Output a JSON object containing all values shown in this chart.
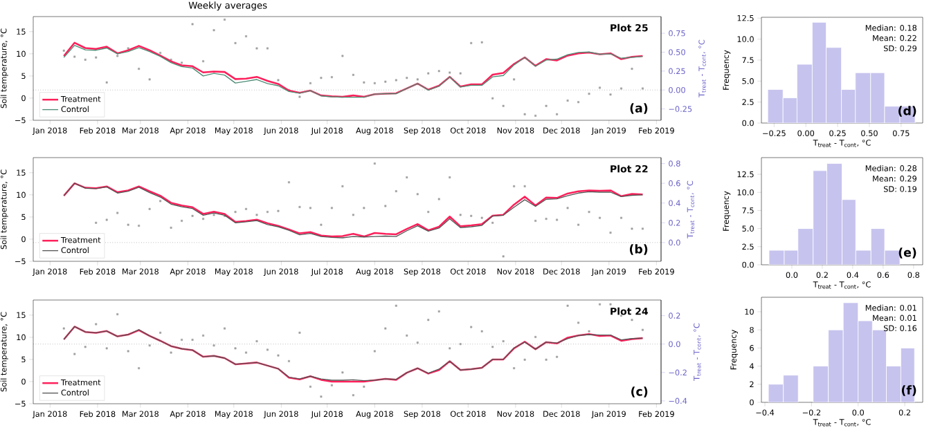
{
  "chart_data": [
    {
      "type": "line",
      "title": "Weekly averages",
      "annotations": [
        "Plot 25",
        "(a)"
      ],
      "ylabel": "Soil temperature, °C",
      "y2label": "T$_{treat}$ - T$_{cont}$, °C",
      "legend": "bottom left",
      "x": [
        "2018-01-10",
        "2018-01-17",
        "2018-01-24",
        "2018-01-31",
        "2018-02-07",
        "2018-02-14",
        "2018-02-21",
        "2018-02-28",
        "2018-03-07",
        "2018-03-14",
        "2018-03-21",
        "2018-03-28",
        "2018-04-04",
        "2018-04-11",
        "2018-04-18",
        "2018-04-25",
        "2018-05-02",
        "2018-05-09",
        "2018-05-16",
        "2018-05-23",
        "2018-05-30",
        "2018-06-06",
        "2018-06-13",
        "2018-06-20",
        "2018-06-27",
        "2018-07-04",
        "2018-07-11",
        "2018-07-18",
        "2018-07-25",
        "2018-08-01",
        "2018-08-08",
        "2018-08-15",
        "2018-08-22",
        "2018-08-29",
        "2018-09-05",
        "2018-09-12",
        "2018-09-19",
        "2018-09-26",
        "2018-10-03",
        "2018-10-10",
        "2018-10-17",
        "2018-10-24",
        "2018-10-31",
        "2018-11-07",
        "2018-11-14",
        "2018-11-21",
        "2018-11-28",
        "2018-12-05",
        "2018-12-12",
        "2018-12-19",
        "2018-12-26",
        "2019-01-02",
        "2019-01-09",
        "2019-01-16",
        "2019-01-23"
      ],
      "series": [
        {
          "type": "scatter",
          "axis": "y2",
          "marker": "square",
          "color": "#a0a0a0",
          "values": [
            0.52,
            0.44,
            0.4,
            0.43,
            0.1,
            0.45,
            0.55,
            0.28,
            0.14,
            0.49,
            0.4,
            0.36,
            0.87,
            0.38,
            0.79,
            0.93,
            0.62,
            0.71,
            0.55,
            0.55,
            0.13,
            0.0,
            -0.09,
            0.09,
            0.16,
            0.17,
            0.45,
            0.2,
            0.1,
            0.09,
            0.11,
            0.13,
            0.16,
            0.14,
            0.22,
            0.25,
            0.23,
            0.22,
            0.62,
            0.63,
            -0.11,
            -0.21,
            0.14,
            -0.32,
            -0.34,
            -0.21,
            -0.32,
            -0.14,
            -0.16,
            -0.05,
            0.03,
            -0.06,
            0.02,
            0.28,
            0.02
          ]
        },
        {
          "name": "Treatment",
          "color": "#ff1f5a",
          "values": [
            9.5,
            12.5,
            11.3,
            11.1,
            11.6,
            10.1,
            10.8,
            11.8,
            10.8,
            9.6,
            8.3,
            7.4,
            7.2,
            5.8,
            6.0,
            5.9,
            4.3,
            4.4,
            4.8,
            3.9,
            3.2,
            1.7,
            1.2,
            1.7,
            0.6,
            0.4,
            0.3,
            0.6,
            0.3,
            0.9,
            1.0,
            1.1,
            2.2,
            3.3,
            1.9,
            2.8,
            4.8,
            2.6,
            3.1,
            3.1,
            5.3,
            5.7,
            7.7,
            9.2,
            7.3,
            8.8,
            8.5,
            9.6,
            10.1,
            10.3,
            9.9,
            10.1,
            8.8,
            9.3,
            9.5
          ]
        },
        {
          "name": "Control",
          "color": "#4d8c74",
          "values": [
            9.2,
            11.9,
            10.9,
            10.8,
            11.3,
            10.0,
            10.5,
            11.4,
            10.5,
            9.4,
            8.0,
            7.1,
            6.8,
            5.0,
            5.6,
            5.2,
            3.4,
            3.8,
            4.2,
            3.3,
            2.8,
            1.5,
            1.1,
            1.7,
            0.5,
            0.3,
            0.2,
            0.2,
            0.2,
            0.9,
            1.0,
            1.0,
            2.2,
            3.3,
            1.8,
            2.7,
            4.8,
            2.5,
            2.9,
            2.9,
            4.8,
            5.1,
            7.5,
            9.2,
            7.2,
            8.6,
            8.8,
            9.8,
            10.3,
            10.4,
            9.9,
            10.0,
            9.0,
            9.2,
            9.4
          ]
        }
      ],
      "xlim": [
        "2017-12-21",
        "2019-02-04"
      ],
      "xticks": [
        {
          "value": "2018-01-01",
          "label": "Jan 2018"
        },
        {
          "value": "2018-02-01",
          "label": "Feb 2018"
        },
        {
          "value": "2018-03-01",
          "label": "Mar 2018"
        },
        {
          "value": "2018-04-01",
          "label": "Apr 2018"
        },
        {
          "value": "2018-05-01",
          "label": "May 2018"
        },
        {
          "value": "2018-06-01",
          "label": "Jun 2018"
        },
        {
          "value": "2018-07-01",
          "label": "Jul 2018"
        },
        {
          "value": "2018-08-01",
          "label": "Aug 2018"
        },
        {
          "value": "2018-09-01",
          "label": "Sep 2018"
        },
        {
          "value": "2018-10-01",
          "label": "Oct 2018"
        },
        {
          "value": "2018-11-01",
          "label": "Nov 2018"
        },
        {
          "value": "2018-12-01",
          "label": "Dec 2018"
        },
        {
          "value": "2019-01-01",
          "label": "Jan 2019"
        },
        {
          "value": "2019-02-01",
          "label": "Feb 2019"
        }
      ],
      "ylim": [
        -5,
        18.4
      ],
      "yticks": [
        {
          "value": -5,
          "label": "−5"
        },
        0,
        5,
        10,
        15
      ],
      "y2lim": [
        -0.4,
        0.97
      ],
      "y2ticks": [
        {
          "value": -0.25,
          "label": "−0.25"
        },
        {
          "value": 0,
          "label": "0.00"
        },
        {
          "value": 0.25,
          "label": "0.25"
        },
        {
          "value": 0.5,
          "label": "0.50"
        },
        {
          "value": 0.75,
          "label": "0.75"
        }
      ],
      "ref_lines": [
        {
          "axis": "y2",
          "value": 0,
          "line_style": "dotted",
          "color": "#999999"
        }
      ]
    },
    {
      "type": "line",
      "annotations": [
        "Plot 22",
        "(b)"
      ],
      "ylabel": "Soil temperature, °C",
      "y2label": "T$_{treat}$ - T$_{cont}$, °C",
      "legend": "bottom left",
      "x": [
        "2018-01-10",
        "2018-01-17",
        "2018-01-24",
        "2018-01-31",
        "2018-02-07",
        "2018-02-14",
        "2018-02-21",
        "2018-02-28",
        "2018-03-07",
        "2018-03-14",
        "2018-03-21",
        "2018-03-28",
        "2018-04-04",
        "2018-04-11",
        "2018-04-18",
        "2018-04-25",
        "2018-05-02",
        "2018-05-09",
        "2018-05-16",
        "2018-05-23",
        "2018-05-30",
        "2018-06-06",
        "2018-06-13",
        "2018-06-20",
        "2018-06-27",
        "2018-07-04",
        "2018-07-11",
        "2018-07-18",
        "2018-07-25",
        "2018-08-01",
        "2018-08-08",
        "2018-08-15",
        "2018-08-22",
        "2018-08-29",
        "2018-09-05",
        "2018-09-12",
        "2018-09-19",
        "2018-09-26",
        "2018-10-03",
        "2018-10-10",
        "2018-10-17",
        "2018-10-24",
        "2018-10-31",
        "2018-11-07",
        "2018-11-14",
        "2018-11-21",
        "2018-11-28",
        "2018-12-05",
        "2018-12-12",
        "2018-12-19",
        "2018-12-26",
        "2019-01-02",
        "2019-01-09",
        "2019-01-16",
        "2019-01-23"
      ],
      "series": [
        {
          "type": "scatter",
          "axis": "y2",
          "marker": "square",
          "color": "#a0a0a0",
          "values": [
            null,
            null,
            null,
            0.2,
            0.23,
            0.3,
            0.18,
            0.17,
            0.34,
            0.42,
            0.15,
            0.22,
            0.27,
            0.24,
            0.28,
            0.27,
            0.31,
            0.34,
            0.28,
            0.31,
            0.32,
            0.61,
            0.36,
            0.35,
            0.18,
            0.35,
            0.57,
            0.28,
            0.35,
            0.8,
            0.37,
            0.52,
            0.66,
            0.49,
            0.31,
            0.44,
            0.66,
            0.28,
            0.27,
            0.25,
            0.2,
            -0.14,
            0.57,
            0.57,
            0.22,
            0.24,
            0.23,
            0.35,
            0.18,
            0.31,
            0.25,
            0.1,
            0.25,
            0.14,
            0.14
          ]
        },
        {
          "name": "Treatment",
          "color": "#ff1f5a",
          "values": [
            9.8,
            12.6,
            11.6,
            11.5,
            11.9,
            10.6,
            11.0,
            11.9,
            10.8,
            9.8,
            8.2,
            7.6,
            7.2,
            5.7,
            6.2,
            5.7,
            3.9,
            4.1,
            4.4,
            3.6,
            3.0,
            2.2,
            1.3,
            1.6,
            0.8,
            0.6,
            0.7,
            1.2,
            0.6,
            1.4,
            1.2,
            1.1,
            2.3,
            3.4,
            2.0,
            2.8,
            5.1,
            2.9,
            3.1,
            3.4,
            5.3,
            5.5,
            7.8,
            9.6,
            7.6,
            9.4,
            9.3,
            10.3,
            10.8,
            11.0,
            10.9,
            11.0,
            9.7,
            10.2,
            10.1
          ]
        },
        {
          "name": "Control",
          "color": "#555555",
          "values": [
            9.8,
            12.6,
            11.5,
            11.4,
            11.8,
            10.4,
            10.8,
            11.7,
            10.5,
            9.5,
            7.9,
            7.3,
            6.9,
            5.4,
            5.9,
            5.4,
            3.7,
            3.9,
            4.2,
            3.3,
            2.8,
            2.0,
            1.0,
            1.3,
            0.6,
            0.4,
            0.3,
            0.6,
            0.5,
            0.6,
            0.7,
            0.6,
            1.9,
            3.0,
            1.8,
            2.5,
            4.6,
            2.6,
            2.8,
            3.1,
            5.2,
            5.4,
            7.2,
            8.9,
            7.4,
            9.0,
            9.1,
            9.8,
            10.4,
            10.7,
            10.6,
            10.6,
            9.6,
            9.9,
            10.0
          ]
        }
      ],
      "xlim": [
        "2017-12-21",
        "2019-02-04"
      ],
      "xticks": [
        {
          "value": "2018-01-01",
          "label": "Jan 2018"
        },
        {
          "value": "2018-02-01",
          "label": "Feb 2018"
        },
        {
          "value": "2018-03-01",
          "label": "Mar 2018"
        },
        {
          "value": "2018-04-01",
          "label": "Apr 2018"
        },
        {
          "value": "2018-05-01",
          "label": "May 2018"
        },
        {
          "value": "2018-06-01",
          "label": "Jun 2018"
        },
        {
          "value": "2018-07-01",
          "label": "Jul 2018"
        },
        {
          "value": "2018-08-01",
          "label": "Aug 2018"
        },
        {
          "value": "2018-09-01",
          "label": "Sep 2018"
        },
        {
          "value": "2018-10-01",
          "label": "Oct 2018"
        },
        {
          "value": "2018-11-01",
          "label": "Nov 2018"
        },
        {
          "value": "2018-12-01",
          "label": "Dec 2018"
        },
        {
          "value": "2019-01-01",
          "label": "Jan 2019"
        },
        {
          "value": "2019-02-01",
          "label": "Feb 2019"
        }
      ],
      "ylim": [
        -5,
        18.4
      ],
      "yticks": [
        {
          "value": -5,
          "label": "−5"
        },
        0,
        5,
        10,
        15
      ],
      "y2lim": [
        -0.19,
        0.86
      ],
      "y2ticks": [
        {
          "value": 0,
          "label": "0.0"
        },
        0.2,
        0.4,
        0.6,
        0.8
      ],
      "ref_lines": [
        {
          "axis": "y2",
          "value": 0,
          "line_style": "dotted",
          "color": "#999999"
        }
      ]
    },
    {
      "type": "line",
      "annotations": [
        "Plot 24",
        "(c)"
      ],
      "ylabel": "Soil temperature, °C",
      "y2label": "T$_{treat}$ - T$_{cont}$, °C",
      "legend": "bottom left",
      "x": [
        "2018-01-10",
        "2018-01-17",
        "2018-01-24",
        "2018-01-31",
        "2018-02-07",
        "2018-02-14",
        "2018-02-21",
        "2018-02-28",
        "2018-03-07",
        "2018-03-14",
        "2018-03-21",
        "2018-03-28",
        "2018-04-04",
        "2018-04-11",
        "2018-04-18",
        "2018-04-25",
        "2018-05-02",
        "2018-05-09",
        "2018-05-16",
        "2018-05-23",
        "2018-05-30",
        "2018-06-06",
        "2018-06-13",
        "2018-06-20",
        "2018-06-27",
        "2018-07-04",
        "2018-07-11",
        "2018-07-18",
        "2018-07-25",
        "2018-08-01",
        "2018-08-08",
        "2018-08-15",
        "2018-08-22",
        "2018-08-29",
        "2018-09-05",
        "2018-09-12",
        "2018-09-19",
        "2018-09-26",
        "2018-10-03",
        "2018-10-10",
        "2018-10-17",
        "2018-10-24",
        "2018-10-31",
        "2018-11-07",
        "2018-11-14",
        "2018-11-21",
        "2018-11-28",
        "2018-12-05",
        "2018-12-12",
        "2018-12-19",
        "2018-12-26",
        "2019-01-02",
        "2019-01-09",
        "2019-01-16",
        "2019-01-23"
      ],
      "series": [
        {
          "type": "scatter",
          "axis": "y2",
          "marker": "square",
          "color": "#a0a0a0",
          "values": [
            0.11,
            -0.07,
            -0.02,
            0.14,
            -0.03,
            0.21,
            -0.05,
            -0.17,
            -0.01,
            0.08,
            -0.06,
            0.03,
            0.03,
            0.06,
            -0.01,
            0.11,
            -0.03,
            -0.06,
            0.02,
            -0.04,
            -0.08,
            -0.12,
            0.08,
            -0.3,
            -0.37,
            -0.29,
            -0.2,
            -0.36,
            -0.3,
            -0.05,
            0.11,
            0.27,
            0.06,
            0.01,
            0.17,
            0.23,
            -0.03,
            0.0,
            0.12,
            0.09,
            -0.02,
            0.02,
            -0.17,
            -0.11,
            0.05,
            -0.11,
            -0.09,
            0.27,
            0.15,
            0.09,
            0.28,
            0.28,
            0.2,
            0.17,
            0.1
          ]
        },
        {
          "name": "Treatment",
          "color": "#ff1f5a",
          "values": [
            9.5,
            12.4,
            11.2,
            11.0,
            11.4,
            10.2,
            10.6,
            11.6,
            10.3,
            9.2,
            8.0,
            7.4,
            7.1,
            5.6,
            5.8,
            5.3,
            3.9,
            4.1,
            4.3,
            3.6,
            2.9,
            0.9,
            0.5,
            1.2,
            0.4,
            0.0,
            0.0,
            0.0,
            0.0,
            0.3,
            0.6,
            0.4,
            2.0,
            3.0,
            1.8,
            2.6,
            4.6,
            2.6,
            2.8,
            3.1,
            5.0,
            5.0,
            7.5,
            9.0,
            7.3,
            8.9,
            8.6,
            9.9,
            10.4,
            10.7,
            10.3,
            10.4,
            9.2,
            9.6,
            9.8
          ]
        },
        {
          "name": "Control",
          "color": "#555555",
          "values": [
            9.5,
            12.4,
            11.2,
            11.0,
            11.4,
            10.2,
            10.6,
            11.7,
            10.3,
            9.2,
            8.0,
            7.4,
            7.1,
            5.6,
            5.8,
            5.3,
            3.9,
            4.1,
            4.3,
            3.6,
            2.9,
            1.0,
            0.6,
            1.2,
            0.6,
            0.3,
            0.3,
            0.4,
            0.2,
            0.3,
            0.6,
            0.5,
            2.0,
            3.0,
            1.9,
            2.8,
            4.6,
            2.6,
            2.8,
            3.1,
            5.0,
            5.0,
            7.6,
            8.9,
            7.3,
            8.9,
            8.7,
            9.7,
            10.4,
            10.6,
            10.5,
            10.5,
            9.4,
            9.7,
            9.8
          ]
        }
      ],
      "xlim": [
        "2017-12-21",
        "2019-02-04"
      ],
      "xticks": [
        {
          "value": "2018-01-01",
          "label": "Jan 2018"
        },
        {
          "value": "2018-02-01",
          "label": "Feb 2018"
        },
        {
          "value": "2018-03-01",
          "label": "Mar 2018"
        },
        {
          "value": "2018-04-01",
          "label": "Apr 2018"
        },
        {
          "value": "2018-05-01",
          "label": "May 2018"
        },
        {
          "value": "2018-06-01",
          "label": "Jun 2018"
        },
        {
          "value": "2018-07-01",
          "label": "Jul 2018"
        },
        {
          "value": "2018-08-01",
          "label": "Aug 2018"
        },
        {
          "value": "2018-09-01",
          "label": "Sep 2018"
        },
        {
          "value": "2018-10-01",
          "label": "Oct 2018"
        },
        {
          "value": "2018-11-01",
          "label": "Nov 2018"
        },
        {
          "value": "2018-12-01",
          "label": "Dec 2018"
        },
        {
          "value": "2019-01-01",
          "label": "Jan 2019"
        },
        {
          "value": "2019-02-01",
          "label": "Feb 2019"
        }
      ],
      "ylim": [
        -5,
        18.4
      ],
      "yticks": [
        {
          "value": -5,
          "label": "−5"
        },
        0,
        5,
        10,
        15
      ],
      "y2lim": [
        -0.42,
        0.31
      ],
      "y2ticks": [
        {
          "value": -0.4,
          "label": "−0.4"
        },
        {
          "value": -0.2,
          "label": "−0.2"
        },
        {
          "value": 0,
          "label": "0.0"
        },
        0.2
      ],
      "ref_lines": [
        {
          "axis": "y2",
          "value": 0,
          "line_style": "dotted",
          "color": "#999999"
        }
      ]
    },
    {
      "type": "histogram",
      "annotations": [
        "Median: 0.18",
        "Mean: 0.22",
        "SD: 0.29",
        "(d)"
      ],
      "xlabel": "T$_{treat}$ - T$_{cont}$, °C",
      "ylabel": "Frequency",
      "color": "#c6c3ee",
      "bins": [
        -0.3,
        -0.18,
        -0.07,
        0.05,
        0.16,
        0.28,
        0.39,
        0.51,
        0.62,
        0.74,
        0.86
      ],
      "values": [
        4,
        3,
        7,
        12,
        9,
        4,
        6,
        6,
        2,
        2
      ],
      "xlim": [
        -0.35,
        0.92
      ],
      "xticks": [
        {
          "value": -0.25,
          "label": "−0.25"
        },
        {
          "value": 0,
          "label": "0.00"
        },
        0.25,
        {
          "value": 0.5,
          "label": "0.50"
        },
        0.75
      ],
      "ylim": [
        0,
        12.6
      ],
      "yticks": [
        {
          "value": 0,
          "label": "0.0"
        },
        2.5,
        {
          "value": 5,
          "label": "5.0"
        },
        7.5,
        {
          "value": 10,
          "label": "10.0"
        },
        12.5
      ]
    },
    {
      "type": "histogram",
      "annotations": [
        "Median: 0.28",
        "Mean: 0.29",
        "SD: 0.19",
        "(e)"
      ],
      "xlabel": "T$_{treat}$ - T$_{cont}$, °C",
      "ylabel": "Frequency",
      "color": "#c6c3ee",
      "bins": [
        -0.15,
        -0.05,
        0.04,
        0.14,
        0.23,
        0.33,
        0.42,
        0.52,
        0.61,
        0.71
      ],
      "values": [
        2,
        2,
        5,
        13,
        14,
        9,
        2,
        5,
        2
      ],
      "xlim": [
        -0.2,
        0.86
      ],
      "xticks": [
        {
          "value": 0,
          "label": "0.0"
        },
        0.2,
        0.4,
        0.6,
        0.8
      ],
      "ylim": [
        0,
        14.8
      ],
      "yticks": [
        {
          "value": 0,
          "label": "0.0"
        },
        2.5,
        {
          "value": 5,
          "label": "5.0"
        },
        7.5,
        {
          "value": 10,
          "label": "10.0"
        },
        12.5
      ]
    },
    {
      "type": "histogram",
      "annotations": [
        "Median: 0.01",
        "Mean: 0.01",
        "SD: 0.16",
        "(f)"
      ],
      "xlabel": "T$_{treat}$ - T$_{cont}$, °C",
      "ylabel": "Frequency",
      "color": "#c6c3ee",
      "bins": [
        -0.385,
        -0.321,
        -0.257,
        -0.193,
        -0.128,
        -0.064,
        0,
        0.061,
        0.121,
        0.183,
        0.242
      ],
      "values": [
        2,
        3,
        0,
        4,
        8,
        11,
        9,
        8,
        4,
        6
      ],
      "xlim": [
        -0.415,
        0.277
      ],
      "xticks": [
        {
          "value": -0.4,
          "label": "−0.4"
        },
        {
          "value": -0.2,
          "label": "−0.2"
        },
        {
          "value": 0,
          "label": "0.0"
        },
        0.2
      ],
      "ylim": [
        0,
        11.6
      ],
      "yticks": [
        0,
        2,
        4,
        6,
        8,
        10
      ]
    }
  ]
}
